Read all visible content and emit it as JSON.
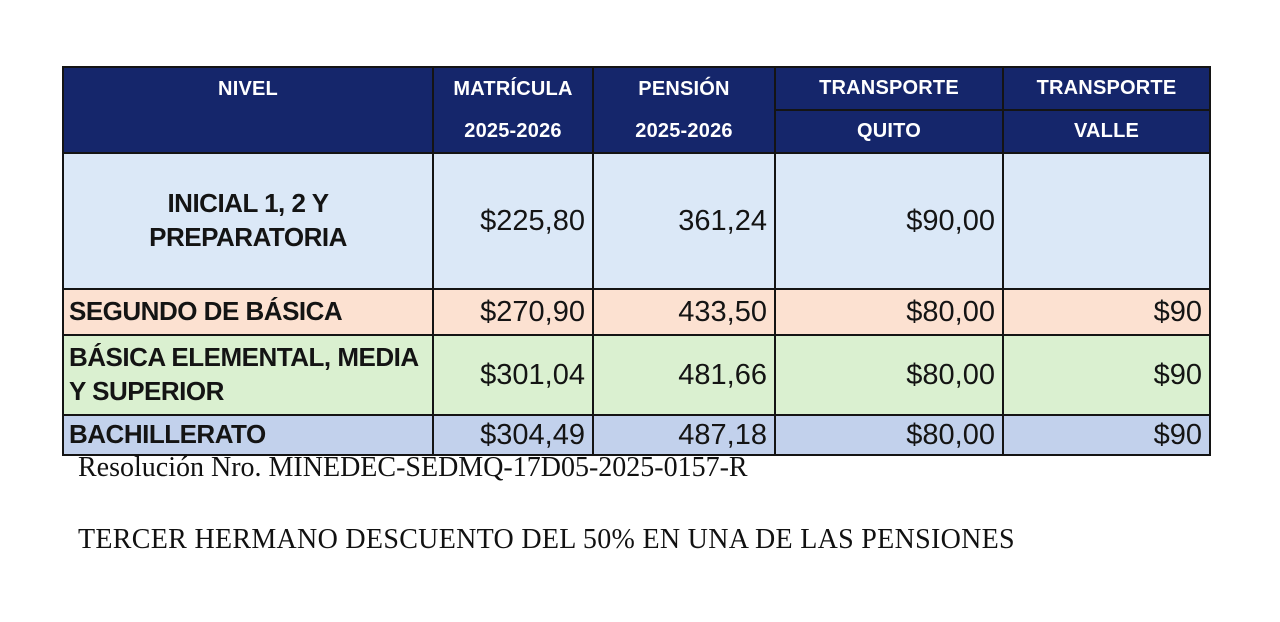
{
  "table": {
    "columns": [
      {
        "label": "NIVEL",
        "sub": ""
      },
      {
        "label": "MATRÍCULA",
        "sub": "2025-2026"
      },
      {
        "label": "PENSIÓN",
        "sub": "2025-2026"
      },
      {
        "label": "TRANSPORTE",
        "sub": "QUITO"
      },
      {
        "label": "TRANSPORTE",
        "sub": "VALLE"
      }
    ],
    "rows": [
      {
        "nivel": "INICIAL 1, 2 Y\nPREPARATORIA",
        "matricula": "$225,80",
        "pension": "361,24",
        "transporte_quito": "$90,00",
        "transporte_valle": ""
      },
      {
        "nivel": "SEGUNDO DE BÁSICA",
        "matricula": "$270,90",
        "pension": "433,50",
        "transporte_quito": "$80,00",
        "transporte_valle": "$90"
      },
      {
        "nivel": "BÁSICA ELEMENTAL, MEDIA\nY SUPERIOR",
        "matricula": "$301,04",
        "pension": "481,66",
        "transporte_quito": "$80,00",
        "transporte_valle": "$90"
      },
      {
        "nivel": "BACHILLERATO",
        "matricula": "$304,49",
        "pension": "487,18",
        "transporte_quito": "$80,00",
        "transporte_valle": "$90"
      }
    ],
    "row_colors": [
      "#dbe8f7",
      "#fce1d1",
      "#daf0d0",
      "#c2d1ec"
    ]
  },
  "notes": {
    "resolution": "Resolución Nro. MINEDEC-SEDMQ-17D05-2025-0157-R",
    "discount": "TERCER HERMANO DESCUENTO DEL 50% EN UNA DE LAS PENSIONES"
  },
  "colors": {
    "header_bg": "#15266b",
    "header_text": "#ffffff",
    "border": "#141414",
    "page_bg": "#ffffff"
  }
}
